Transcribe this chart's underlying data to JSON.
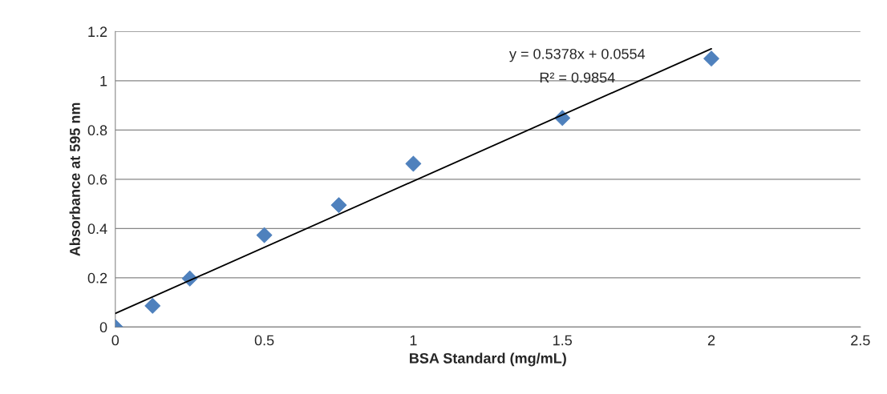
{
  "chart_data": {
    "type": "scatter",
    "xlabel": "BSA Standard (mg/mL)",
    "ylabel": "Absorbance at 595 nm",
    "x": [
      0,
      0.125,
      0.25,
      0.5,
      0.75,
      1,
      1.5,
      2
    ],
    "series": [
      {
        "color": "#4f81bd",
        "marker": "diamond",
        "values": [
          0.0,
          0.086,
          0.197,
          0.373,
          0.495,
          0.663,
          0.849,
          1.09
        ]
      },
      {
        "type": "line",
        "color": "#000000",
        "marker": "none",
        "x": [
          0,
          2
        ],
        "values": [
          0.055,
          1.13
        ]
      }
    ],
    "annotations": [
      "y = 0.5378x + 0.0554",
      "R² = 0.9854"
    ],
    "xlim": [
      0,
      2.5
    ],
    "xticks": [
      0,
      0.5,
      1,
      1.5,
      2,
      2.5
    ],
    "ylim": [
      0,
      1.2
    ],
    "yticks": [
      0,
      0.2,
      0.4,
      0.6,
      0.8,
      1,
      1.2
    ],
    "grid": "y",
    "legend": false
  }
}
